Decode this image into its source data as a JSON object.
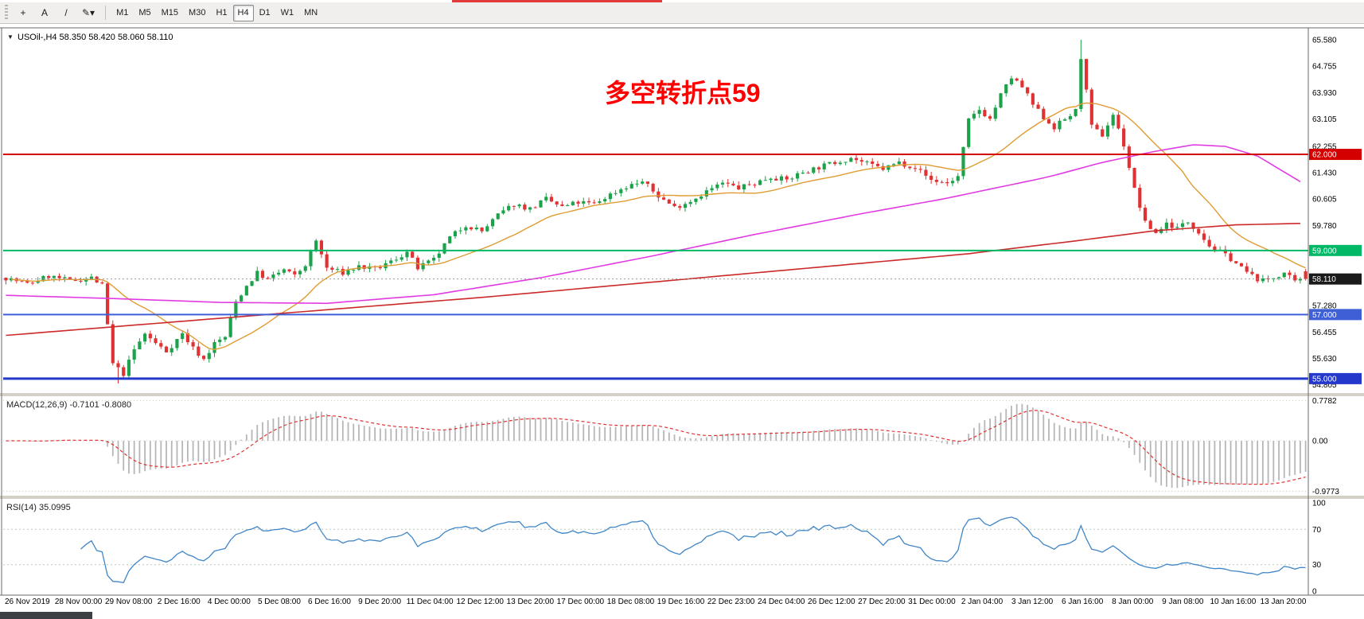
{
  "toolbar": {
    "tools": [
      {
        "name": "crosshair-button",
        "glyph": "+"
      },
      {
        "name": "text-label-button",
        "glyph": "A"
      },
      {
        "name": "trendline-button",
        "glyph": "/"
      },
      {
        "name": "drawing-tools-dropdown",
        "glyph": "✎▾"
      }
    ],
    "timeframes": [
      "M1",
      "M5",
      "M15",
      "M30",
      "H1",
      "H4",
      "D1",
      "W1",
      "MN"
    ],
    "active_timeframe": "H4"
  },
  "chart_data": {
    "type": "candlestick",
    "symbol": "USOil-",
    "timeframe": "H4",
    "header_arrow": "▼",
    "header": "USOil-,H4  58.350 58.420 58.060 58.110",
    "ohlc": {
      "open": "58.350",
      "high": "58.420",
      "low": "58.060",
      "close": "58.110"
    },
    "annotation": {
      "text": "多空转折点59",
      "color": "#ff0000"
    },
    "price_range": {
      "min": 54.55,
      "max": 65.95
    },
    "y_axis_labels": [
      "65.580",
      "64.755",
      "63.930",
      "63.105",
      "62.255",
      "61.430",
      "60.605",
      "59.780",
      "57.280",
      "56.455",
      "55.630",
      "54.805"
    ],
    "hlines": [
      {
        "price": 62.0,
        "label": "62.000",
        "color": "#d40000",
        "width": 2
      },
      {
        "price": 59.0,
        "label": "59.000",
        "color": "#00b866",
        "width": 2
      },
      {
        "price": 57.0,
        "label": "57.000",
        "color": "#3f5fd6",
        "width": 2
      },
      {
        "price": 55.0,
        "label": "55.000",
        "color": "#2438cc",
        "width": 3
      }
    ],
    "current_price": {
      "value": 58.11,
      "label": "58.110",
      "tag_bg": "#1a1a1a"
    },
    "candles": {
      "count": 244,
      "seed": 7,
      "bull_color": "#1ca24a",
      "bear_color": "#e03232",
      "last_bar": {
        "o": 58.35,
        "h": 58.42,
        "l": 58.06,
        "c": 58.11
      },
      "extremes": [
        {
          "i": 21,
          "low": 54.85
        },
        {
          "i": 201,
          "high": 65.58
        }
      ],
      "keypoints": [
        [
          0,
          58.15
        ],
        [
          4,
          57.95
        ],
        [
          8,
          58.2
        ],
        [
          12,
          58.05
        ],
        [
          16,
          58.15
        ],
        [
          18,
          57.9
        ],
        [
          20,
          55.45
        ],
        [
          22,
          55.15
        ],
        [
          24,
          55.9
        ],
        [
          26,
          56.4
        ],
        [
          28,
          56.1
        ],
        [
          30,
          55.85
        ],
        [
          33,
          56.4
        ],
        [
          35,
          55.95
        ],
        [
          37,
          55.6
        ],
        [
          39,
          56.1
        ],
        [
          41,
          56.3
        ],
        [
          43,
          57.4
        ],
        [
          45,
          57.9
        ],
        [
          47,
          58.3
        ],
        [
          49,
          58.1
        ],
        [
          52,
          58.4
        ],
        [
          54,
          58.2
        ],
        [
          56,
          58.55
        ],
        [
          58,
          59.3
        ],
        [
          60,
          58.45
        ],
        [
          63,
          58.3
        ],
        [
          66,
          58.5
        ],
        [
          69,
          58.4
        ],
        [
          72,
          58.65
        ],
        [
          75,
          58.95
        ],
        [
          77,
          58.45
        ],
        [
          80,
          58.7
        ],
        [
          83,
          59.4
        ],
        [
          86,
          59.8
        ],
        [
          89,
          59.6
        ],
        [
          92,
          60.1
        ],
        [
          95,
          60.45
        ],
        [
          98,
          60.3
        ],
        [
          101,
          60.6
        ],
        [
          104,
          60.35
        ],
        [
          107,
          60.5
        ],
        [
          110,
          60.45
        ],
        [
          113,
          60.75
        ],
        [
          116,
          61
        ],
        [
          119,
          61.15
        ],
        [
          122,
          60.7
        ],
        [
          125,
          60.35
        ],
        [
          128,
          60.55
        ],
        [
          131,
          60.85
        ],
        [
          134,
          61.1
        ],
        [
          137,
          60.95
        ],
        [
          140,
          61.1
        ],
        [
          143,
          61.3
        ],
        [
          146,
          61.2
        ],
        [
          149,
          61.45
        ],
        [
          152,
          61.6
        ],
        [
          155,
          61.75
        ],
        [
          158,
          61.9
        ],
        [
          161,
          61.7
        ],
        [
          164,
          61.55
        ],
        [
          167,
          61.75
        ],
        [
          170,
          61.6
        ],
        [
          173,
          61.2
        ],
        [
          176,
          61.1
        ],
        [
          178,
          61.3
        ],
        [
          180,
          63.05
        ],
        [
          182,
          63.4
        ],
        [
          184,
          63.1
        ],
        [
          186,
          63.85
        ],
        [
          188,
          64.4
        ],
        [
          190,
          64.1
        ],
        [
          192,
          63.55
        ],
        [
          194,
          63.15
        ],
        [
          196,
          62.85
        ],
        [
          198,
          63.1
        ],
        [
          200,
          63.35
        ],
        [
          201,
          65.05
        ],
        [
          203,
          62.85
        ],
        [
          205,
          62.6
        ],
        [
          207,
          63.25
        ],
        [
          209,
          62.3
        ],
        [
          211,
          60.9
        ],
        [
          213,
          59.85
        ],
        [
          215,
          59.55
        ],
        [
          217,
          59.85
        ],
        [
          219,
          59.7
        ],
        [
          221,
          59.9
        ],
        [
          223,
          59.6
        ],
        [
          225,
          59.15
        ],
        [
          227,
          58.95
        ],
        [
          229,
          58.75
        ],
        [
          231,
          58.45
        ],
        [
          233,
          58.2
        ],
        [
          235,
          58.05
        ],
        [
          237,
          58.15
        ],
        [
          239,
          58.3
        ],
        [
          241,
          58
        ],
        [
          243,
          58.11
        ]
      ]
    },
    "ma_lines": {
      "orange": {
        "period": 20,
        "color": "#e09c33"
      },
      "magenta": {
        "color": "#e23ae2",
        "points": [
          [
            0,
            57.6
          ],
          [
            20,
            57.5
          ],
          [
            40,
            57.38
          ],
          [
            60,
            57.35
          ],
          [
            80,
            57.62
          ],
          [
            100,
            58.15
          ],
          [
            120,
            58.8
          ],
          [
            140,
            59.5
          ],
          [
            160,
            60.15
          ],
          [
            175,
            60.6
          ],
          [
            185,
            60.95
          ],
          [
            195,
            61.3
          ],
          [
            205,
            61.75
          ],
          [
            215,
            62.1
          ],
          [
            222,
            62.3
          ],
          [
            228,
            62.25
          ],
          [
            234,
            61.95
          ],
          [
            243,
            61.05
          ]
        ]
      },
      "red": {
        "color": "#cc2a2a",
        "points": [
          [
            0,
            56.35
          ],
          [
            30,
            56.75
          ],
          [
            60,
            57.15
          ],
          [
            90,
            57.55
          ],
          [
            120,
            58
          ],
          [
            150,
            58.45
          ],
          [
            180,
            58.9
          ],
          [
            200,
            59.3
          ],
          [
            215,
            59.62
          ],
          [
            230,
            59.8
          ],
          [
            243,
            59.85
          ]
        ]
      }
    },
    "macd": {
      "display": "MACD(12,26,9) -0.7101 -0.8080",
      "main_value": "-0.7101",
      "signal_value": "-0.8080",
      "params": {
        "fast": 12,
        "slow": 26,
        "signal": 9
      },
      "axis_labels": [
        "0.7782",
        "0.00",
        "-0.9773"
      ],
      "histogram_color": "#b6b6b6",
      "signal_color": "#e03232"
    },
    "rsi": {
      "display": "RSI(14) 35.0995",
      "value": "35.0995",
      "period": 14,
      "axis_labels": [
        "100",
        "70",
        "30",
        "0"
      ],
      "levels": [
        70,
        30
      ],
      "line_color": "#4086c8"
    },
    "time_axis_labels": [
      "26 Nov 2019",
      "28 Nov 00:00",
      "29 Nov 08:00",
      "2 Dec 16:00",
      "4 Dec 00:00",
      "5 Dec 08:00",
      "6 Dec 16:00",
      "9 Dec 20:00",
      "11 Dec 04:00",
      "12 Dec 12:00",
      "13 Dec 20:00",
      "17 Dec 00:00",
      "18 Dec 08:00",
      "19 Dec 16:00",
      "22 Dec 23:00",
      "24 Dec 04:00",
      "26 Dec 12:00",
      "27 Dec 20:00",
      "31 Dec 00:00",
      "2 Jan 04:00",
      "3 Jan 12:00",
      "6 Jan 16:00",
      "8 Jan 00:00",
      "9 Jan 08:00",
      "10 Jan 16:00",
      "13 Jan 20:00"
    ]
  }
}
